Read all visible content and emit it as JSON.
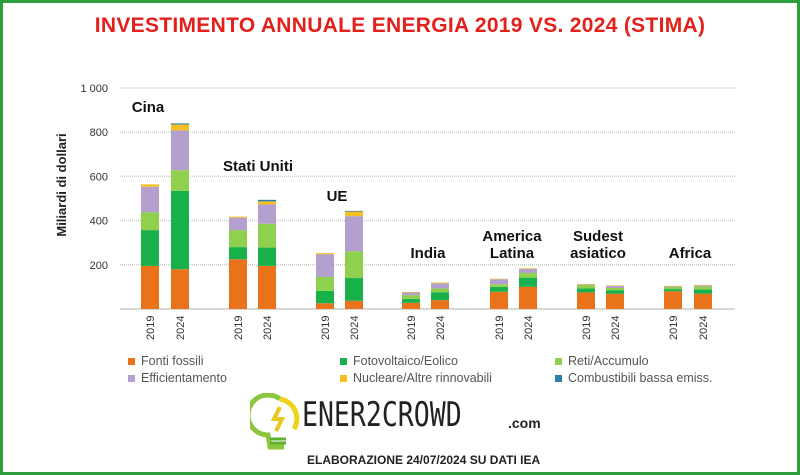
{
  "chart_data": {
    "type": "bar",
    "stacked": true,
    "title": "INVESTIMENTO ANNUALE ENERGIA 2019 VS. 2024 (STIMA)",
    "ylabel": "Miliardi di dollari",
    "xlabel": "",
    "ylim": [
      0,
      1000
    ],
    "yticks": [
      "200",
      "400",
      "600",
      "800",
      "1 000"
    ],
    "grid": true,
    "legend_position": "bottom",
    "groups": [
      "Cina",
      "Stati Uniti",
      "UE",
      "India",
      "America Latina",
      "Sudest asiatico",
      "Africa"
    ],
    "years": [
      "2019",
      "2024"
    ],
    "series": [
      {
        "name": "Fonti fossili",
        "color": "#e8731a",
        "values": [
          [
            195,
            180
          ],
          [
            225,
            195
          ],
          [
            26,
            37
          ],
          [
            28,
            40
          ],
          [
            78,
            100
          ],
          [
            75,
            69
          ],
          [
            80,
            69
          ]
        ]
      },
      {
        "name": "Fotovoltaico/Eolico",
        "color": "#17b04a",
        "values": [
          [
            162,
            355
          ],
          [
            55,
            83
          ],
          [
            56,
            103
          ],
          [
            18,
            36
          ],
          [
            22,
            42
          ],
          [
            18,
            16
          ],
          [
            10,
            20
          ]
        ]
      },
      {
        "name": "Reti/Accumulo",
        "color": "#8fd14f",
        "values": [
          [
            81,
            93
          ],
          [
            77,
            108
          ],
          [
            63,
            121
          ],
          [
            17,
            17
          ],
          [
            12,
            21
          ],
          [
            16,
            10
          ],
          [
            10,
            13
          ]
        ]
      },
      {
        "name": "Efficientamento",
        "color": "#b4a0cf",
        "values": [
          [
            115,
            180
          ],
          [
            56,
            87
          ],
          [
            103,
            159
          ],
          [
            12,
            23
          ],
          [
            23,
            18
          ],
          [
            3,
            10
          ],
          [
            4,
            5
          ]
        ]
      },
      {
        "name": "Nucleare/Altre rinnovabili",
        "color": "#f5c024",
        "values": [
          [
            11,
            27
          ],
          [
            5,
            14
          ],
          [
            5,
            21
          ],
          [
            2,
            4
          ],
          [
            2,
            3
          ],
          [
            1,
            2
          ],
          [
            1,
            2
          ]
        ]
      },
      {
        "name": "Combustibili bassa emiss.",
        "color": "#2c7fa8",
        "values": [
          [
            0,
            5
          ],
          [
            0,
            7
          ],
          [
            0,
            3
          ],
          [
            0,
            0
          ],
          [
            0,
            0
          ],
          [
            0,
            0
          ],
          [
            0,
            0
          ]
        ]
      }
    ]
  },
  "branding": {
    "logo_text": "ENER2CROWD",
    "logo_suffix": ".com",
    "footer": "ELABORAZIONE 24/07/2024 SU DATI IEA"
  }
}
